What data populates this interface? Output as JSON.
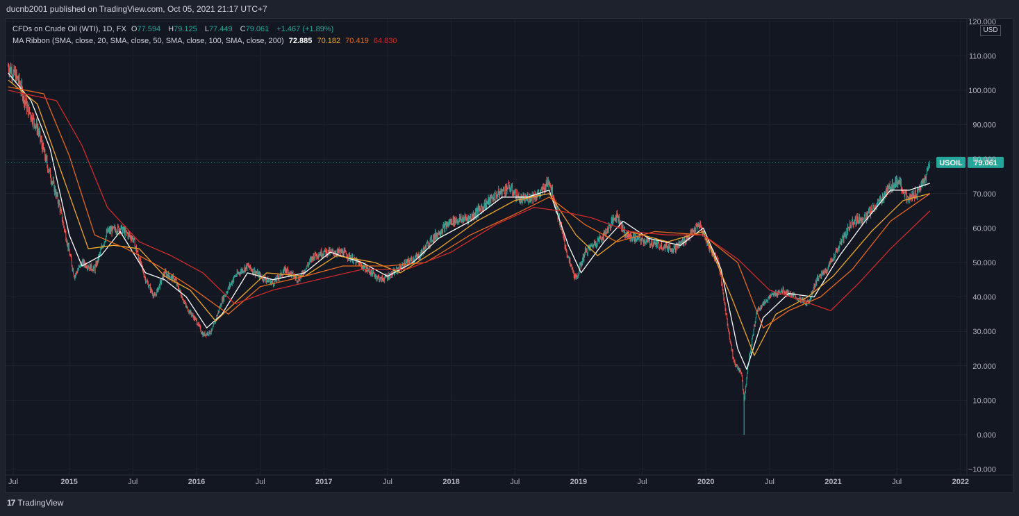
{
  "header": {
    "published": "ducnb2001 published on TradingView.com, Oct 05, 2021 21:17 UTC+7"
  },
  "legend": {
    "symbol": "CFDs on Crude Oil (WTI), 1D, FX",
    "o_label": "O",
    "o": "77.594",
    "h_label": "H",
    "h": "79.125",
    "l_label": "L",
    "l": "77.449",
    "c_label": "C",
    "c": "79.061",
    "change": "+1.467 (+1.89%)",
    "ma_label": "MA Ribbon (SMA, close, 20, SMA, close, 50, SMA, close, 100, SMA, close, 200)",
    "ma20": "72.885",
    "ma50": "70.182",
    "ma100": "70.419",
    "ma200": "64.830"
  },
  "price_axis": {
    "currency": "USD",
    "ticks": [
      "120.000",
      "110.000",
      "100.000",
      "90.000",
      "80.000",
      "70.000",
      "60.000",
      "50.000",
      "40.000",
      "30.000",
      "20.000",
      "10.000",
      "0.000",
      "−10.000"
    ]
  },
  "time_axis": {
    "ticks": [
      "Jul",
      "2015",
      "Jul",
      "2016",
      "Jul",
      "2017",
      "Jul",
      "2018",
      "Jul",
      "2019",
      "Jul",
      "2020",
      "Jul",
      "2021",
      "Jul",
      "2022"
    ]
  },
  "last_price": {
    "symbol": "USOIL",
    "value": "79.061"
  },
  "footer": {
    "brand": "TradingView",
    "logo_mark": "17"
  },
  "colors": {
    "background": "#131722",
    "up": "#26a69a",
    "down": "#ef5350",
    "ma20": "#ffffff",
    "ma50": "#f0a72a",
    "ma100": "#e8691f",
    "ma200": "#d12a2a",
    "grid": "#1f2330",
    "price_tag": "#26a69a"
  },
  "chart_data": {
    "type": "line",
    "title": "CFDs on Crude Oil (WTI), 1D, FX",
    "x_unit": "year (decimal)",
    "xlim": [
      2014.5,
      2022.05
    ],
    "ylim": [
      -10,
      120
    ],
    "grid": true,
    "last_value": 79.061,
    "series": [
      {
        "name": "Close",
        "points": [
          [
            2014.52,
            107
          ],
          [
            2014.6,
            103
          ],
          [
            2014.67,
            95
          ],
          [
            2014.75,
            89
          ],
          [
            2014.83,
            78
          ],
          [
            2014.92,
            67
          ],
          [
            2015.0,
            53
          ],
          [
            2015.04,
            46
          ],
          [
            2015.1,
            50
          ],
          [
            2015.2,
            48
          ],
          [
            2015.3,
            59
          ],
          [
            2015.4,
            60
          ],
          [
            2015.5,
            57
          ],
          [
            2015.6,
            45
          ],
          [
            2015.67,
            40
          ],
          [
            2015.75,
            47
          ],
          [
            2015.83,
            45
          ],
          [
            2015.92,
            37
          ],
          [
            2016.0,
            33
          ],
          [
            2016.05,
            29
          ],
          [
            2016.12,
            30
          ],
          [
            2016.2,
            39
          ],
          [
            2016.3,
            46
          ],
          [
            2016.4,
            49
          ],
          [
            2016.5,
            46
          ],
          [
            2016.6,
            44
          ],
          [
            2016.7,
            48
          ],
          [
            2016.8,
            45
          ],
          [
            2016.92,
            52
          ],
          [
            2017.0,
            53
          ],
          [
            2017.15,
            53
          ],
          [
            2017.3,
            49
          ],
          [
            2017.45,
            45
          ],
          [
            2017.55,
            47
          ],
          [
            2017.65,
            50
          ],
          [
            2017.75,
            52
          ],
          [
            2017.85,
            57
          ],
          [
            2018.0,
            62
          ],
          [
            2018.15,
            63
          ],
          [
            2018.3,
            68
          ],
          [
            2018.45,
            72
          ],
          [
            2018.55,
            68
          ],
          [
            2018.62,
            69
          ],
          [
            2018.7,
            70
          ],
          [
            2018.77,
            74
          ],
          [
            2018.85,
            62
          ],
          [
            2018.92,
            51
          ],
          [
            2018.98,
            45
          ],
          [
            2019.05,
            53
          ],
          [
            2019.2,
            58
          ],
          [
            2019.3,
            64
          ],
          [
            2019.37,
            58
          ],
          [
            2019.45,
            57
          ],
          [
            2019.55,
            56
          ],
          [
            2019.65,
            55
          ],
          [
            2019.75,
            54
          ],
          [
            2019.85,
            57
          ],
          [
            2019.95,
            61
          ],
          [
            2020.02,
            55
          ],
          [
            2020.1,
            50
          ],
          [
            2020.17,
            32
          ],
          [
            2020.22,
            21
          ],
          [
            2020.28,
            18
          ],
          [
            2020.3,
            10
          ],
          [
            2020.33,
            20
          ],
          [
            2020.4,
            36
          ],
          [
            2020.5,
            40
          ],
          [
            2020.6,
            42
          ],
          [
            2020.7,
            40
          ],
          [
            2020.8,
            38
          ],
          [
            2020.87,
            45
          ],
          [
            2020.95,
            48
          ],
          [
            2021.05,
            55
          ],
          [
            2021.15,
            62
          ],
          [
            2021.25,
            63
          ],
          [
            2021.35,
            67
          ],
          [
            2021.45,
            72
          ],
          [
            2021.52,
            74
          ],
          [
            2021.58,
            68
          ],
          [
            2021.65,
            70
          ],
          [
            2021.72,
            74
          ],
          [
            2021.76,
            79
          ]
        ]
      },
      {
        "name": "SMA 20",
        "points": [
          [
            2014.52,
            105
          ],
          [
            2014.7,
            97
          ],
          [
            2014.85,
            83
          ],
          [
            2015.0,
            58
          ],
          [
            2015.1,
            49
          ],
          [
            2015.25,
            52
          ],
          [
            2015.4,
            59
          ],
          [
            2015.6,
            47
          ],
          [
            2015.75,
            45
          ],
          [
            2015.92,
            40
          ],
          [
            2016.08,
            31
          ],
          [
            2016.2,
            35
          ],
          [
            2016.4,
            47
          ],
          [
            2016.6,
            45
          ],
          [
            2016.85,
            47
          ],
          [
            2017.05,
            53
          ],
          [
            2017.3,
            50
          ],
          [
            2017.5,
            46
          ],
          [
            2017.7,
            50
          ],
          [
            2017.9,
            57
          ],
          [
            2018.15,
            62
          ],
          [
            2018.4,
            69
          ],
          [
            2018.6,
            69
          ],
          [
            2018.77,
            71
          ],
          [
            2018.92,
            55
          ],
          [
            2019.02,
            47
          ],
          [
            2019.2,
            56
          ],
          [
            2019.35,
            62
          ],
          [
            2019.55,
            57
          ],
          [
            2019.8,
            55
          ],
          [
            2019.98,
            60
          ],
          [
            2020.12,
            48
          ],
          [
            2020.25,
            25
          ],
          [
            2020.32,
            19
          ],
          [
            2020.45,
            34
          ],
          [
            2020.65,
            41
          ],
          [
            2020.85,
            40
          ],
          [
            2021.05,
            52
          ],
          [
            2021.25,
            62
          ],
          [
            2021.45,
            71
          ],
          [
            2021.6,
            71
          ],
          [
            2021.76,
            73
          ]
        ]
      },
      {
        "name": "SMA 50",
        "points": [
          [
            2014.52,
            103
          ],
          [
            2014.75,
            96
          ],
          [
            2014.95,
            75
          ],
          [
            2015.15,
            54
          ],
          [
            2015.35,
            55
          ],
          [
            2015.55,
            54
          ],
          [
            2015.75,
            46
          ],
          [
            2015.95,
            42
          ],
          [
            2016.15,
            33
          ],
          [
            2016.35,
            40
          ],
          [
            2016.55,
            47
          ],
          [
            2016.85,
            46
          ],
          [
            2017.1,
            52
          ],
          [
            2017.4,
            50
          ],
          [
            2017.6,
            47
          ],
          [
            2017.9,
            54
          ],
          [
            2018.2,
            62
          ],
          [
            2018.5,
            68
          ],
          [
            2018.77,
            70
          ],
          [
            2018.98,
            58
          ],
          [
            2019.15,
            52
          ],
          [
            2019.4,
            59
          ],
          [
            2019.7,
            56
          ],
          [
            2019.98,
            59
          ],
          [
            2020.2,
            40
          ],
          [
            2020.38,
            23
          ],
          [
            2020.55,
            35
          ],
          [
            2020.8,
            40
          ],
          [
            2021.0,
            46
          ],
          [
            2021.3,
            59
          ],
          [
            2021.55,
            68
          ],
          [
            2021.76,
            70
          ]
        ]
      },
      {
        "name": "SMA 100",
        "points": [
          [
            2014.52,
            101
          ],
          [
            2014.8,
            99
          ],
          [
            2015.0,
            81
          ],
          [
            2015.2,
            58
          ],
          [
            2015.45,
            54
          ],
          [
            2015.7,
            49
          ],
          [
            2015.95,
            43
          ],
          [
            2016.25,
            35
          ],
          [
            2016.5,
            43
          ],
          [
            2016.85,
            46
          ],
          [
            2017.15,
            49
          ],
          [
            2017.5,
            49
          ],
          [
            2017.8,
            50
          ],
          [
            2018.15,
            58
          ],
          [
            2018.5,
            64
          ],
          [
            2018.77,
            69
          ],
          [
            2019.05,
            61
          ],
          [
            2019.3,
            56
          ],
          [
            2019.6,
            59
          ],
          [
            2019.98,
            58
          ],
          [
            2020.25,
            50
          ],
          [
            2020.45,
            31
          ],
          [
            2020.65,
            36
          ],
          [
            2020.9,
            40
          ],
          [
            2021.15,
            48
          ],
          [
            2021.45,
            62
          ],
          [
            2021.76,
            70
          ]
        ]
      },
      {
        "name": "SMA 200",
        "points": [
          [
            2014.52,
            100
          ],
          [
            2014.9,
            97
          ],
          [
            2015.1,
            84
          ],
          [
            2015.3,
            66
          ],
          [
            2015.55,
            56
          ],
          [
            2015.8,
            52
          ],
          [
            2016.05,
            47
          ],
          [
            2016.3,
            38
          ],
          [
            2016.6,
            42
          ],
          [
            2016.95,
            45
          ],
          [
            2017.3,
            48
          ],
          [
            2017.65,
            48
          ],
          [
            2018.0,
            53
          ],
          [
            2018.35,
            61
          ],
          [
            2018.65,
            66
          ],
          [
            2018.85,
            65
          ],
          [
            2019.1,
            63
          ],
          [
            2019.4,
            59
          ],
          [
            2019.7,
            58
          ],
          [
            2019.98,
            58
          ],
          [
            2020.25,
            51
          ],
          [
            2020.5,
            42
          ],
          [
            2020.75,
            39
          ],
          [
            2020.98,
            36
          ],
          [
            2021.2,
            44
          ],
          [
            2021.45,
            54
          ],
          [
            2021.76,
            65
          ]
        ]
      }
    ]
  }
}
